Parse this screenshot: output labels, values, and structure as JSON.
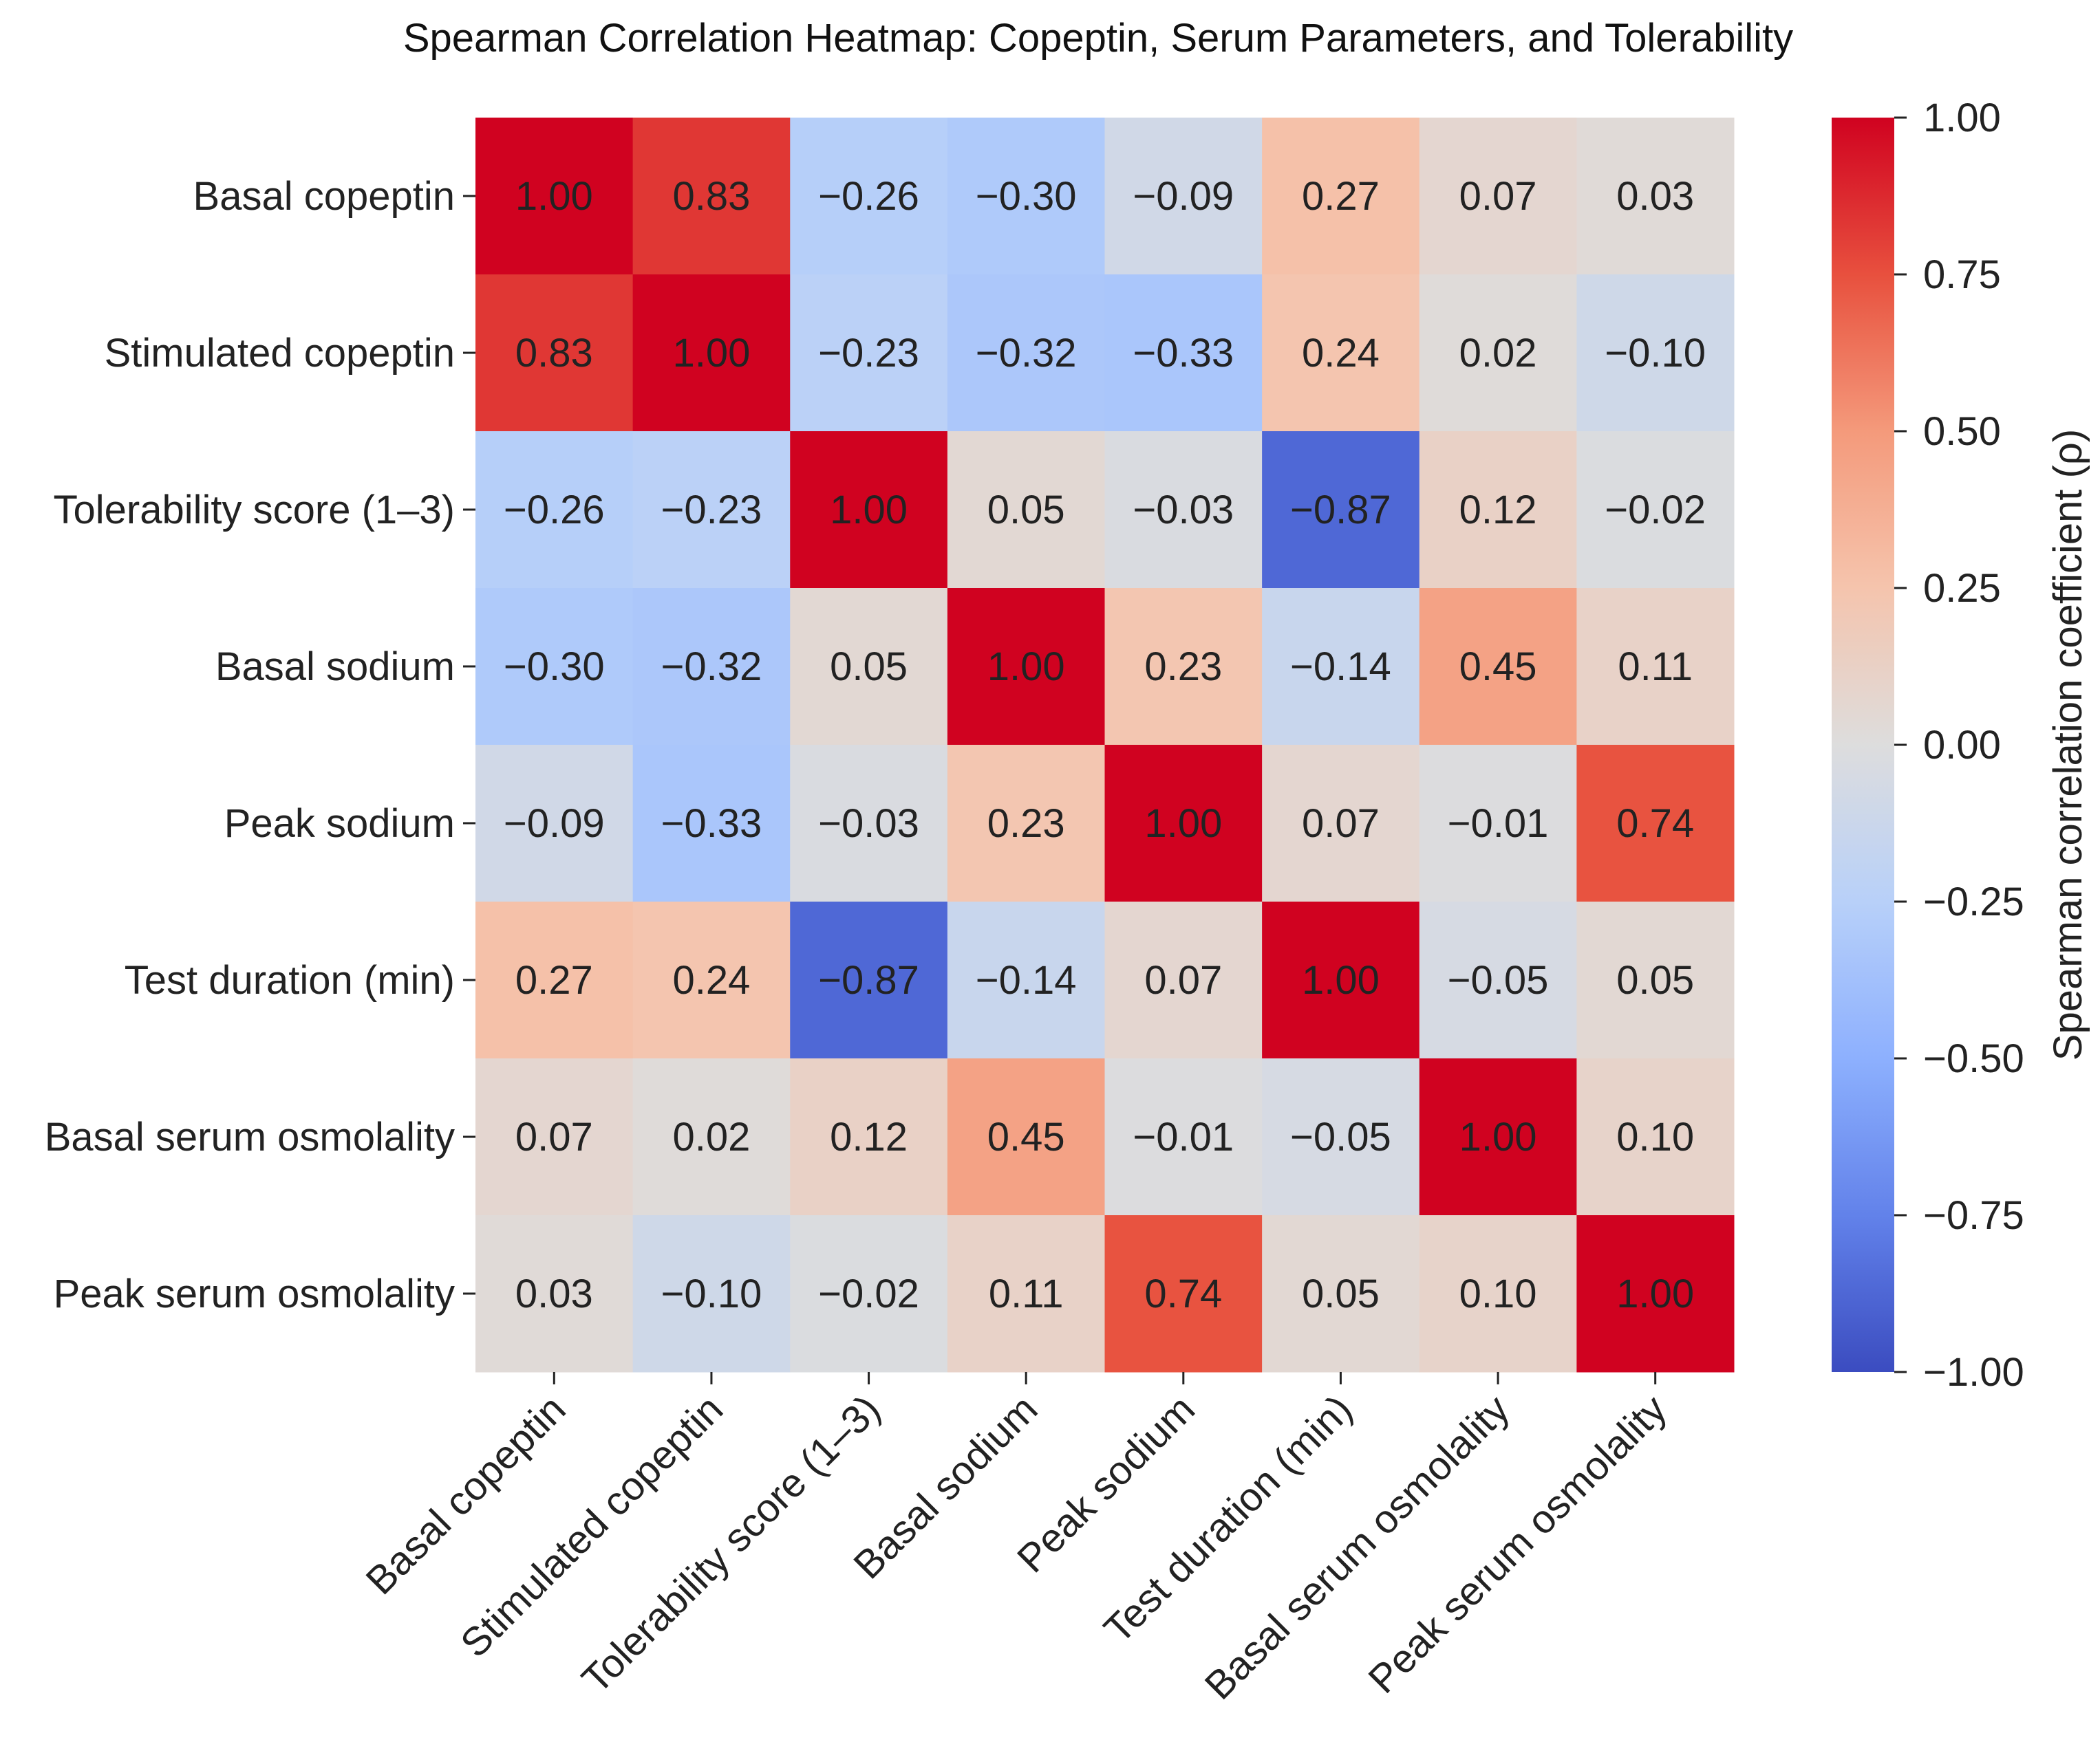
{
  "chart_data": {
    "type": "heatmap",
    "title": "Spearman Correlation Heatmap: Copeptin, Serum Parameters, and Tolerability",
    "xlabel": "",
    "ylabel": "",
    "labels": [
      "Basal copeptin",
      "Stimulated copeptin",
      "Tolerability score (1–3)",
      "Basal sodium",
      "Peak sodium",
      "Test duration (min)",
      "Basal serum osmolality",
      "Peak serum osmolality"
    ],
    "values": [
      [
        1.0,
        0.83,
        -0.26,
        -0.3,
        -0.09,
        0.27,
        0.07,
        0.03
      ],
      [
        0.83,
        1.0,
        -0.23,
        -0.32,
        -0.33,
        0.24,
        0.02,
        -0.1
      ],
      [
        -0.26,
        -0.23,
        1.0,
        0.05,
        -0.03,
        -0.87,
        0.12,
        -0.02
      ],
      [
        -0.3,
        -0.32,
        0.05,
        1.0,
        0.23,
        -0.14,
        0.45,
        0.11
      ],
      [
        -0.09,
        -0.33,
        -0.03,
        0.23,
        1.0,
        0.07,
        -0.01,
        0.74
      ],
      [
        0.27,
        0.24,
        -0.87,
        -0.14,
        0.07,
        1.0,
        -0.05,
        0.05
      ],
      [
        0.07,
        0.02,
        0.12,
        0.45,
        -0.01,
        -0.05,
        1.0,
        0.1
      ],
      [
        0.03,
        -0.1,
        -0.02,
        0.11,
        0.74,
        0.05,
        0.1,
        1.0
      ]
    ],
    "colormap": "coolwarm",
    "vmin": -1,
    "vmax": 1,
    "colorbar": {
      "label": "Spearman correlation coefficient (ρ)",
      "ticks": [
        1.0,
        0.75,
        0.5,
        0.25,
        0.0,
        -0.25,
        -0.5,
        -0.75,
        -1.0
      ],
      "tick_labels": [
        "1.00",
        "0.75",
        "0.50",
        "0.25",
        "0.00",
        "−0.25",
        "−0.50",
        "−0.75",
        "−1.00"
      ],
      "placement": "right"
    },
    "annotation_format": "0.00"
  }
}
